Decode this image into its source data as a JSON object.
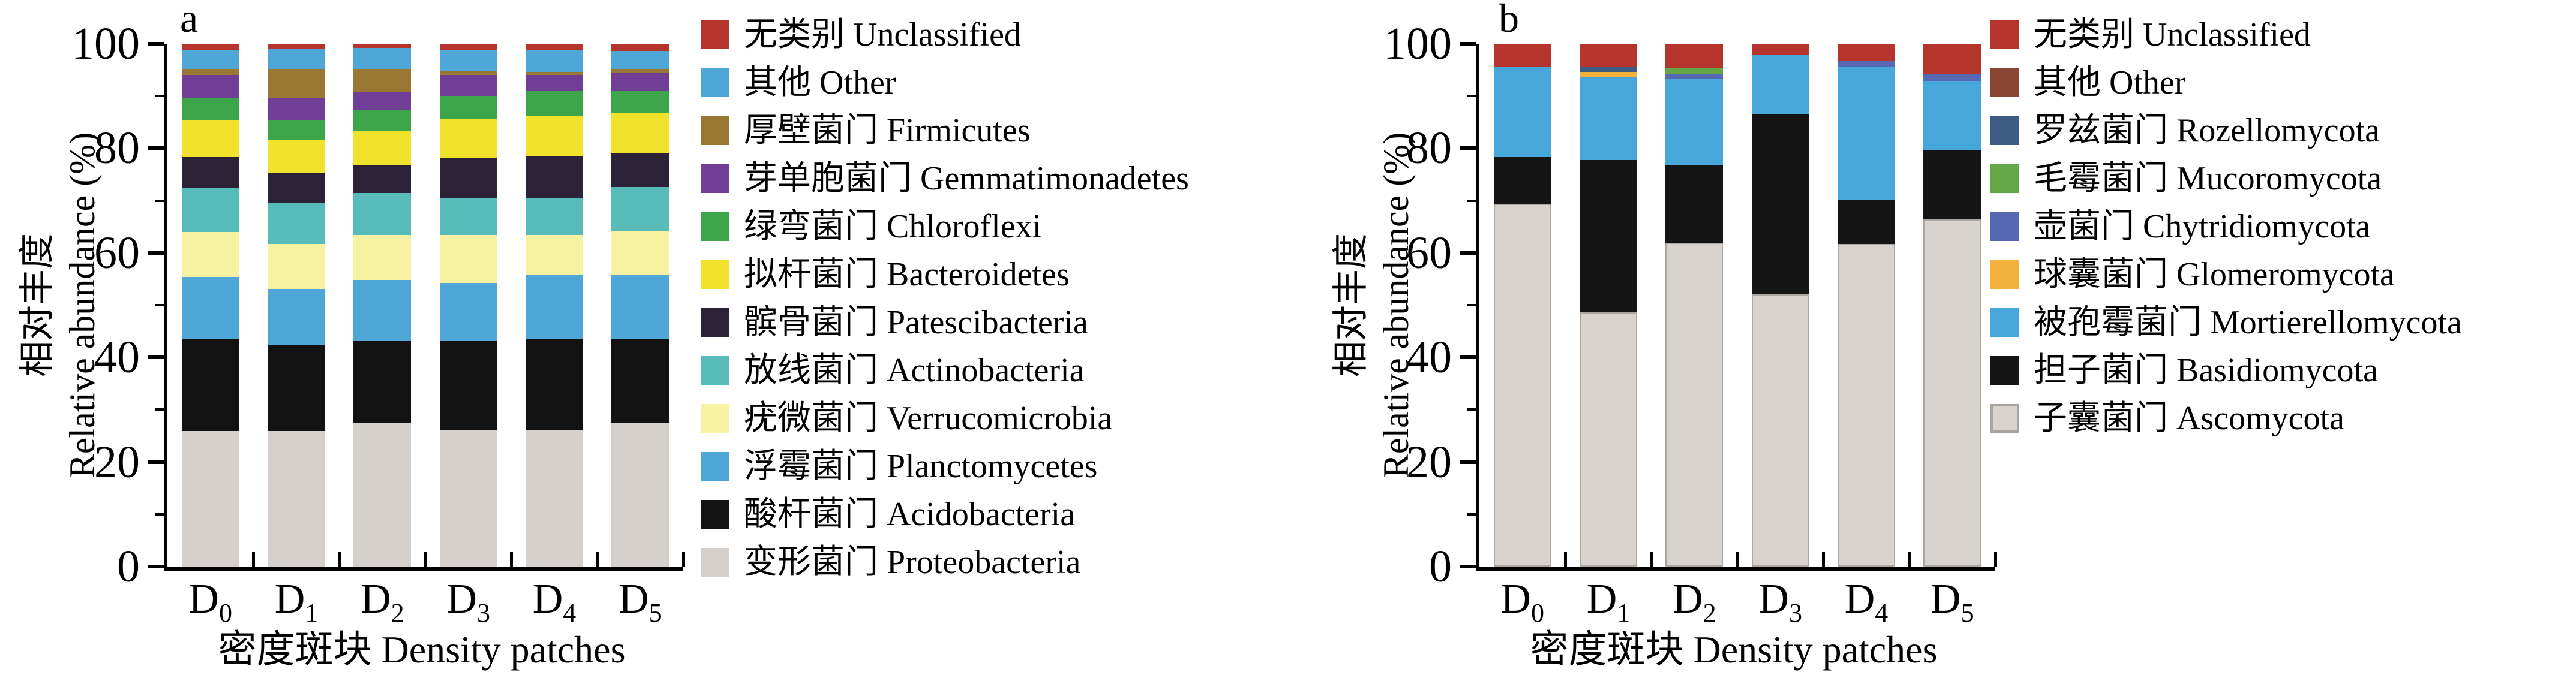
{
  "figure": {
    "background": "#FFFFFF",
    "axis_color": "#000000"
  },
  "chart_data": [
    {
      "id": "a",
      "type": "bar",
      "stacked": true,
      "panel_label": "a",
      "xlabel": "密度斑块 Density patches",
      "ylabel_line1": "相对丰度",
      "ylabel_line2": "Relative abundance (%)",
      "ylim": [
        0,
        100
      ],
      "yticks": [
        0,
        20,
        40,
        60,
        80,
        100
      ],
      "yticks_minor": [
        10,
        30,
        50,
        70,
        90
      ],
      "grid": false,
      "legend_position": "right",
      "categories": [
        {
          "main": "D",
          "sub": "0"
        },
        {
          "main": "D",
          "sub": "1"
        },
        {
          "main": "D",
          "sub": "2"
        },
        {
          "main": "D",
          "sub": "3"
        },
        {
          "main": "D",
          "sub": "4"
        },
        {
          "main": "D",
          "sub": "5"
        }
      ],
      "series": [
        {
          "zh": "变形菌门",
          "en": "Proteobacteria",
          "color": "#D5D0CB",
          "outlined": false,
          "values": [
            25.9,
            25.9,
            27.4,
            26.1,
            26.1,
            27.5
          ]
        },
        {
          "zh": "酸杆菌门",
          "en": "Acidobacteria",
          "color": "#121212",
          "outlined": false,
          "values": [
            17.7,
            16.4,
            15.7,
            17.0,
            17.4,
            16.0
          ]
        },
        {
          "zh": "浮霉菌门",
          "en": "Planctomycetes",
          "color": "#4FA7D7",
          "outlined": false,
          "values": [
            11.8,
            10.8,
            11.7,
            11.2,
            12.2,
            12.4
          ]
        },
        {
          "zh": "疣微菌门",
          "en": "Verrucomicrobia",
          "color": "#F7F2A2",
          "outlined": false,
          "values": [
            8.6,
            8.6,
            8.6,
            9.1,
            7.7,
            8.2
          ]
        },
        {
          "zh": "放线菌门",
          "en": "Actinobacteria",
          "color": "#57BBB9",
          "outlined": false,
          "values": [
            8.4,
            7.8,
            8.0,
            7.0,
            7.0,
            8.5
          ]
        },
        {
          "zh": "髌骨菌门",
          "en": "Patescibacteria",
          "color": "#2B2237",
          "outlined": false,
          "values": [
            5.9,
            5.9,
            5.3,
            7.7,
            8.2,
            6.5
          ]
        },
        {
          "zh": "拟杆菌门",
          "en": "Bacteroidetes",
          "color": "#F1E32B",
          "outlined": false,
          "values": [
            7.0,
            6.3,
            6.7,
            7.5,
            7.5,
            7.7
          ]
        },
        {
          "zh": "绿弯菌门",
          "en": "Chloroflexi",
          "color": "#3CA449",
          "outlined": false,
          "values": [
            4.4,
            3.6,
            4.0,
            4.4,
            4.8,
            4.1
          ]
        },
        {
          "zh": "芽单胞菌门",
          "en": "Gemmatimonadetes",
          "color": "#703E97",
          "outlined": false,
          "values": [
            4.3,
            4.4,
            3.4,
            4.1,
            3.1,
            3.5
          ]
        },
        {
          "zh": "厚壁菌门",
          "en": "Firmicutes",
          "color": "#9A7733",
          "outlined": false,
          "values": [
            1.2,
            5.5,
            4.4,
            0.6,
            0.6,
            0.8
          ]
        },
        {
          "zh": "其他",
          "en": "Other",
          "color": "#4FA7D7",
          "outlined": false,
          "values": [
            3.6,
            3.8,
            4.0,
            4.1,
            4.1,
            3.4
          ]
        },
        {
          "zh": "无类别",
          "en": "Unclassified",
          "color": "#B5352C",
          "outlined": false,
          "values": [
            1.2,
            1.0,
            0.8,
            1.2,
            1.3,
            1.4
          ]
        }
      ]
    },
    {
      "id": "b",
      "type": "bar",
      "stacked": true,
      "panel_label": "b",
      "xlabel": "密度斑块 Density patches",
      "ylabel_line1": "相对丰度",
      "ylabel_line2": "Relative abundance (%)",
      "ylim": [
        0,
        100
      ],
      "yticks": [
        0,
        20,
        40,
        60,
        80,
        100
      ],
      "yticks_minor": [
        10,
        30,
        50,
        70,
        90
      ],
      "grid": false,
      "legend_position": "right",
      "categories": [
        {
          "main": "D",
          "sub": "0"
        },
        {
          "main": "D",
          "sub": "1"
        },
        {
          "main": "D",
          "sub": "2"
        },
        {
          "main": "D",
          "sub": "3"
        },
        {
          "main": "D",
          "sub": "4"
        },
        {
          "main": "D",
          "sub": "5"
        }
      ],
      "series": [
        {
          "zh": "子囊菌门",
          "en": "Ascomycota",
          "color": "#D8D3CE",
          "outlined": true,
          "values": [
            69.4,
            48.6,
            61.9,
            52.1,
            61.7,
            66.4
          ]
        },
        {
          "zh": "担子菌门",
          "en": "Basidiomycota",
          "color": "#141414",
          "outlined": false,
          "values": [
            8.9,
            29.1,
            14.9,
            34.5,
            8.4,
            13.2
          ]
        },
        {
          "zh": "被孢霉菌门",
          "en": "Mortierellomycota",
          "color": "#47A6DA",
          "outlined": false,
          "values": [
            17.3,
            16.0,
            16.5,
            11.2,
            25.6,
            13.3
          ]
        },
        {
          "zh": "球囊菌门",
          "en": "Glomeromycota",
          "color": "#F3B13C",
          "outlined": false,
          "values": [
            0,
            0.9,
            0,
            0,
            0,
            0
          ]
        },
        {
          "zh": "壶菌门",
          "en": "Chytridiomycota",
          "color": "#5568B1",
          "outlined": false,
          "values": [
            0,
            0,
            0.9,
            0,
            1.0,
            1.2
          ]
        },
        {
          "zh": "毛霉菌门",
          "en": "Mucoromycota",
          "color": "#63A647",
          "outlined": false,
          "values": [
            0,
            0,
            1.2,
            0,
            0,
            0
          ]
        },
        {
          "zh": "罗兹菌门",
          "en": "Rozellomycota",
          "color": "#3E5C83",
          "outlined": false,
          "values": [
            0,
            0.9,
            0,
            0,
            0,
            0
          ]
        },
        {
          "zh": "其他",
          "en": "Other",
          "color": "#8A4632",
          "outlined": false,
          "values": [
            0,
            0,
            0,
            0,
            0,
            0
          ]
        },
        {
          "zh": "无类别",
          "en": "Unclassified",
          "color": "#B5352C",
          "outlined": false,
          "values": [
            4.4,
            4.5,
            4.6,
            2.2,
            3.3,
            5.9
          ]
        }
      ]
    }
  ]
}
